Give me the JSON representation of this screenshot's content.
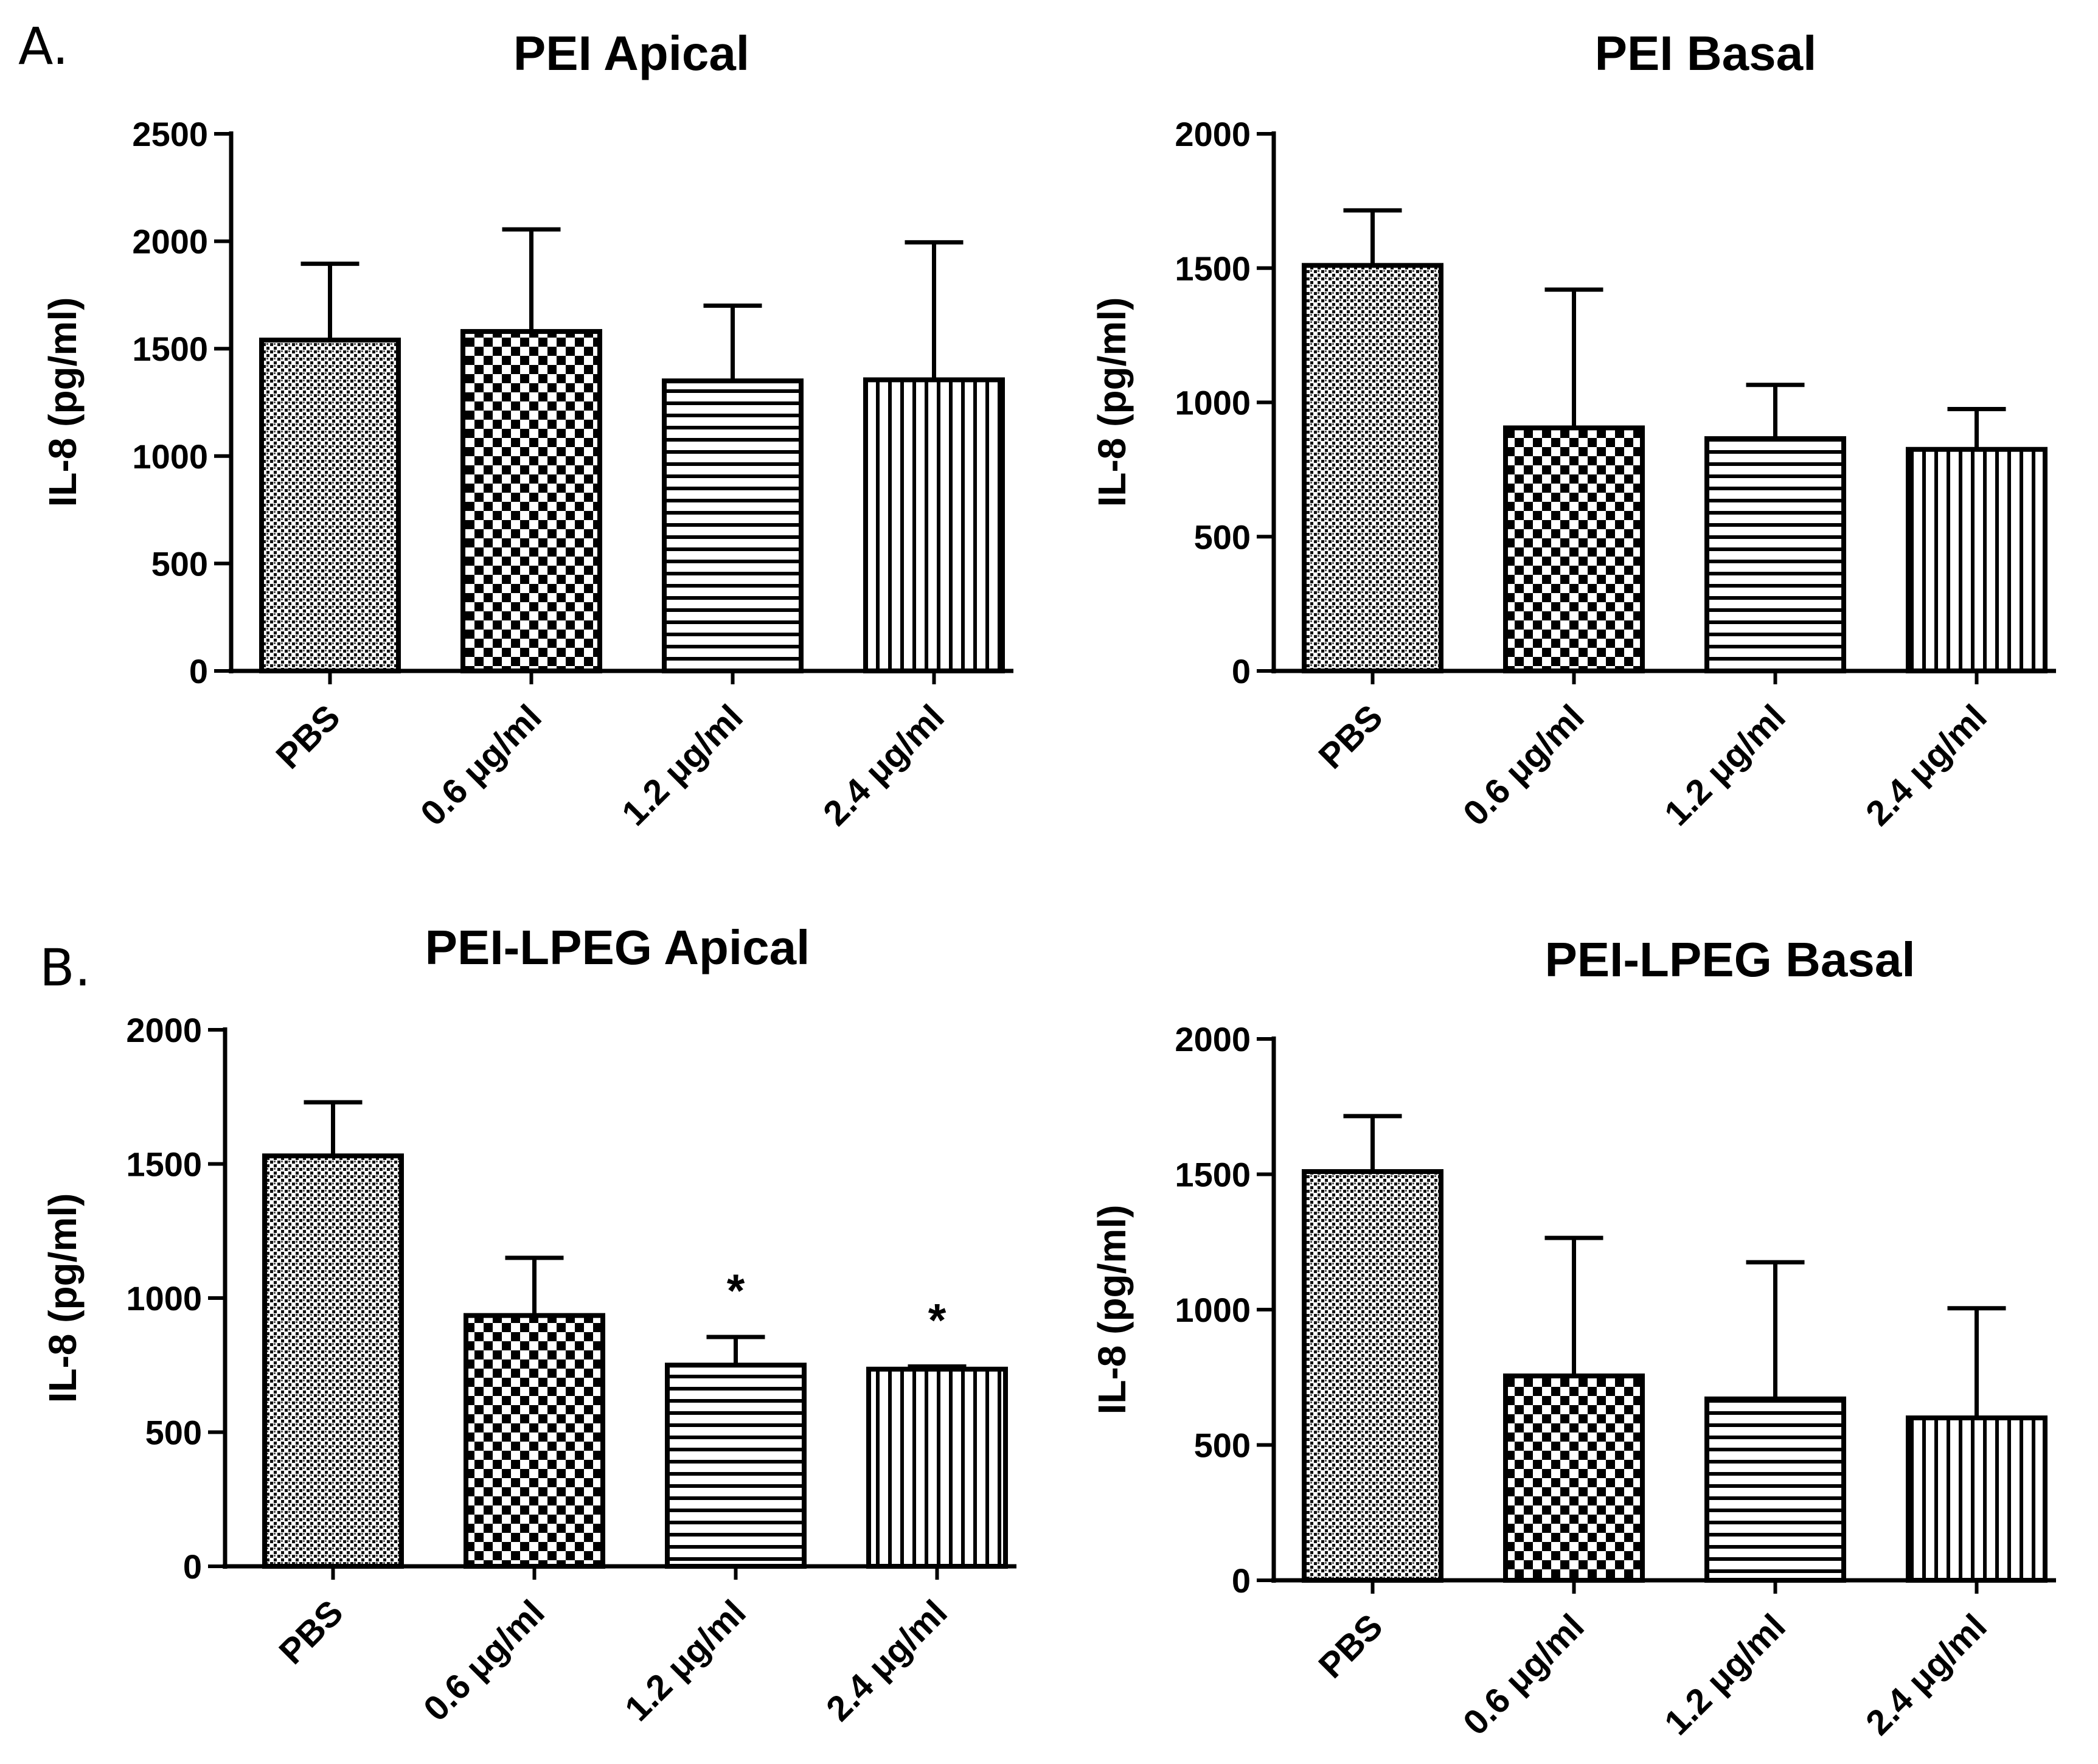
{
  "panels": {
    "a_label": "A.",
    "b_label": "B."
  },
  "chart_data": [
    {
      "type": "bar",
      "title": "PEI Apical",
      "xlabel": "",
      "ylabel": "IL-8 (pg/ml)",
      "ylim": [
        0,
        2500
      ],
      "yticks": [
        0,
        500,
        1000,
        1500,
        2000,
        2500
      ],
      "categories": [
        "PBS",
        "0.6 μg/ml",
        "1.2 μg/ml",
        "2.4 μg/ml"
      ],
      "values": [
        1540,
        1580,
        1350,
        1355
      ],
      "error_upper": [
        1895,
        2055,
        1700,
        1995
      ],
      "patterns": [
        "stipple",
        "checker",
        "horizontal",
        "vertical"
      ],
      "annotations": [
        "",
        "",
        "",
        ""
      ]
    },
    {
      "type": "bar",
      "title": "PEI Basal",
      "xlabel": "",
      "ylabel": "IL-8 (pg/ml)",
      "ylim": [
        0,
        2000
      ],
      "yticks": [
        0,
        500,
        1000,
        1500,
        2000
      ],
      "categories": [
        "PBS",
        "0.6 μg/ml",
        "1.2 μg/ml",
        "2.4 μg/ml"
      ],
      "values": [
        1510,
        905,
        865,
        825
      ],
      "error_upper": [
        1715,
        1420,
        1065,
        975
      ],
      "patterns": [
        "stipple",
        "checker",
        "horizontal",
        "vertical"
      ],
      "annotations": [
        "",
        "",
        "",
        ""
      ]
    },
    {
      "type": "bar",
      "title": "PEI-LPEG Apical",
      "xlabel": "",
      "ylabel": "IL-8 (pg/ml)",
      "ylim": [
        0,
        2000
      ],
      "yticks": [
        0,
        500,
        1000,
        1500,
        2000
      ],
      "categories": [
        "PBS",
        "0.6 μg/ml",
        "1.2 μg/ml",
        "2.4 μg/ml"
      ],
      "values": [
        1530,
        935,
        750,
        735
      ],
      "error_upper": [
        1730,
        1150,
        855,
        745
      ],
      "patterns": [
        "stipple",
        "checker",
        "horizontal",
        "vertical"
      ],
      "annotations": [
        "",
        "",
        "*",
        "*"
      ]
    },
    {
      "type": "bar",
      "title": "PEI-LPEG Basal",
      "xlabel": "",
      "ylabel": "IL-8 (pg/ml)",
      "ylim": [
        0,
        2000
      ],
      "yticks": [
        0,
        500,
        1000,
        1500,
        2000
      ],
      "categories": [
        "PBS",
        "0.6 μg/ml",
        "1.2 μg/ml",
        "2.4 μg/ml"
      ],
      "values": [
        1510,
        755,
        670,
        600
      ],
      "error_upper": [
        1715,
        1265,
        1175,
        1005
      ],
      "patterns": [
        "stipple",
        "checker",
        "horizontal",
        "vertical"
      ],
      "annotations": [
        "",
        "",
        "",
        ""
      ]
    }
  ]
}
